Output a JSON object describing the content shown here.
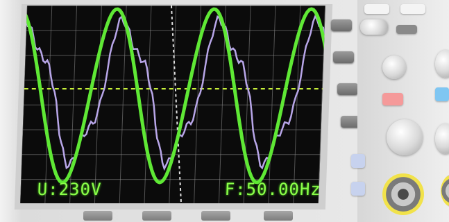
{
  "readouts": {
    "voltage": "U:230V",
    "frequency": "F:50.00Hz"
  },
  "colors": {
    "screen_background": "#0b0b0b",
    "grid": "#8f8f8f",
    "trace_green": "#5fe835",
    "trace_purple": "#b8a6e8",
    "trigger_line": "#c7f03a",
    "readout_text": "#8bff4a"
  }
}
